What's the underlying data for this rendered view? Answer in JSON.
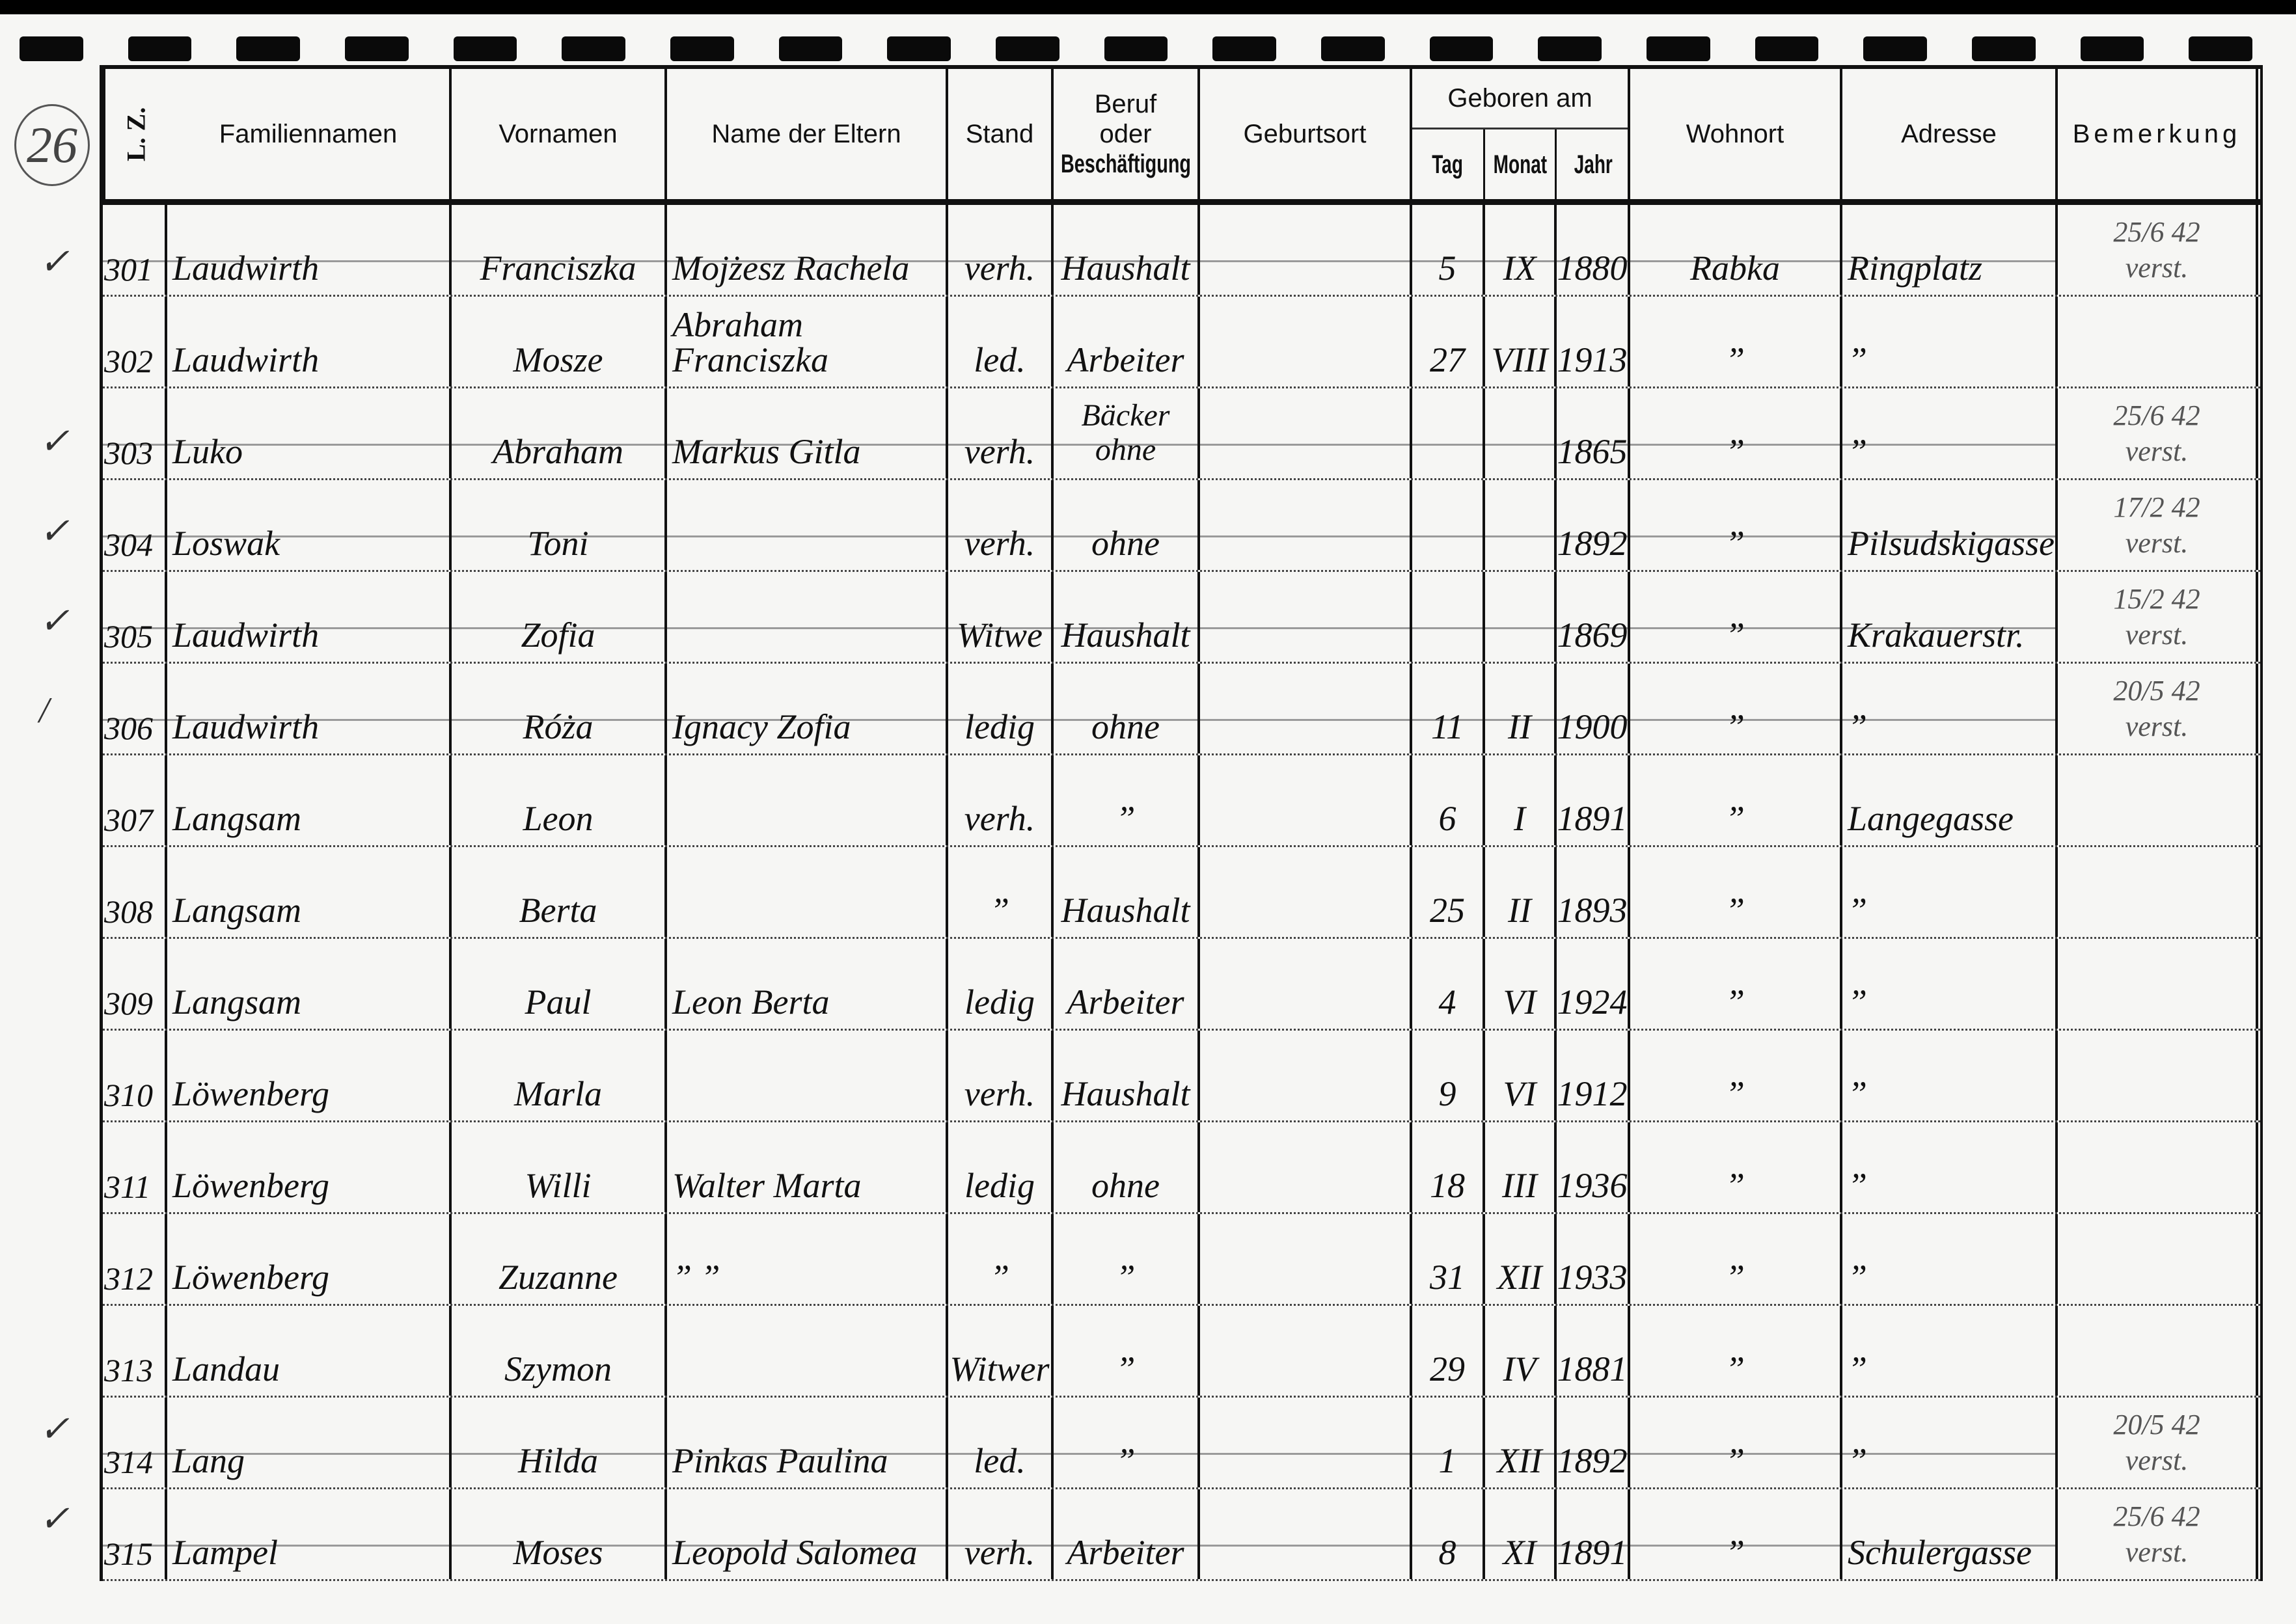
{
  "page_number": "26",
  "headers": {
    "lz": "L. Z.",
    "family": "Familiennamen",
    "first": "Vornamen",
    "parents": "Name der Eltern",
    "stand": "Stand",
    "beruf_1": "Beruf",
    "beruf_2": "oder",
    "beruf_3": "Beschäftigung",
    "geburtsort": "Geburtsort",
    "geboren": "Geboren am",
    "tag": "Tag",
    "monat": "Monat",
    "jahr": "Jahr",
    "wohnort": "Wohnort",
    "adresse": "Adresse",
    "bemerkung": "Bemerkung"
  },
  "rows": [
    {
      "lz": "301",
      "family": "Laudwirth",
      "first": "Franciszka",
      "parents": "Mojżesz Rachela",
      "stand": "verh.",
      "beruf": "Haushalt",
      "tag": "5",
      "monat": "IX",
      "jahr": "1880",
      "wohnort": "Rabka",
      "adresse": "Ringplatz",
      "rem1": "25/6 42",
      "rem2": "verst.",
      "check": "✓",
      "struck": true
    },
    {
      "lz": "302",
      "family": "Laudwirth",
      "first": "Mosze",
      "parents": "Abraham Franciszka",
      "stand": "led.",
      "beruf": "Arbeiter",
      "tag": "27",
      "monat": "VIII",
      "jahr": "1913",
      "wohnort": "”",
      "adresse": "”"
    },
    {
      "lz": "303",
      "family": "Luko",
      "first": "Abraham",
      "parents": "Markus Gitla",
      "stand": "verh.",
      "beruf": "Bäcker ohne",
      "jahr": "1865",
      "wohnort": "”",
      "adresse": "”",
      "rem1": "25/6 42",
      "rem2": "verst.",
      "check": "✓",
      "struck": true
    },
    {
      "lz": "304",
      "family": "Loswak",
      "first": "Toni",
      "stand": "verh.",
      "beruf": "ohne",
      "jahr": "1892",
      "wohnort": "”",
      "adresse": "Pilsudskigasse",
      "rem1": "17/2 42",
      "rem2": "verst.",
      "check": "✓",
      "struck": true
    },
    {
      "lz": "305",
      "family": "Laudwirth",
      "first": "Zofia",
      "stand": "Witwe",
      "beruf": "Haushalt",
      "jahr": "1869",
      "wohnort": "”",
      "adresse": "Krakauerstr.",
      "rem1": "15/2 42",
      "rem2": "verst.",
      "check": "✓",
      "struck": true
    },
    {
      "lz": "306",
      "family": "Laudwirth",
      "first": "Róża",
      "parents": "Ignacy Zofia",
      "stand": "ledig",
      "beruf": "ohne",
      "tag": "11",
      "monat": "II",
      "jahr": "1900",
      "wohnort": "”",
      "adresse": "”",
      "rem1": "20/5 42",
      "rem2": "verst.",
      "check": "/",
      "struck": true
    },
    {
      "lz": "307",
      "family": "Langsam",
      "first": "Leon",
      "stand": "verh.",
      "beruf": "”",
      "tag": "6",
      "monat": "I",
      "jahr": "1891",
      "wohnort": "”",
      "adresse": "Langegasse"
    },
    {
      "lz": "308",
      "family": "Langsam",
      "first": "Berta",
      "stand": "”",
      "beruf": "Haushalt",
      "tag": "25",
      "monat": "II",
      "jahr": "1893",
      "wohnort": "”",
      "adresse": "”"
    },
    {
      "lz": "309",
      "family": "Langsam",
      "first": "Paul",
      "parents": "Leon Berta",
      "stand": "ledig",
      "beruf": "Arbeiter",
      "tag": "4",
      "monat": "VI",
      "jahr": "1924",
      "wohnort": "”",
      "adresse": "”"
    },
    {
      "lz": "310",
      "family": "Löwenberg",
      "first": "Marla",
      "stand": "verh.",
      "beruf": "Haushalt",
      "tag": "9",
      "monat": "VI",
      "jahr": "1912",
      "wohnort": "”",
      "adresse": "”"
    },
    {
      "lz": "311",
      "family": "Löwenberg",
      "first": "Willi",
      "parents": "Walter Marta",
      "stand": "ledig",
      "beruf": "ohne",
      "tag": "18",
      "monat": "III",
      "jahr": "1936",
      "wohnort": "”",
      "adresse": "”"
    },
    {
      "lz": "312",
      "family": "Löwenberg",
      "first": "Zuzanne",
      "parents": "”        ”",
      "stand": "”",
      "beruf": "”",
      "tag": "31",
      "monat": "XII",
      "jahr": "1933",
      "wohnort": "”",
      "adresse": "”"
    },
    {
      "lz": "313",
      "family": "Landau",
      "first": "Szymon",
      "stand": "Witwer",
      "beruf": "”",
      "tag": "29",
      "monat": "IV",
      "jahr": "1881",
      "wohnort": "”",
      "adresse": "”"
    },
    {
      "lz": "314",
      "family": "Lang",
      "first": "Hilda",
      "parents": "Pinkas Paulina",
      "stand": "led.",
      "beruf": "”",
      "tag": "1",
      "monat": "XII",
      "jahr": "1892",
      "wohnort": "”",
      "adresse": "”",
      "rem1": "20/5 42",
      "rem2": "verst.",
      "check": "✓",
      "struck": true
    },
    {
      "lz": "315",
      "family": "Lampel",
      "first": "Moses",
      "parents": "Leopold Salomea",
      "stand": "verh.",
      "beruf": "Arbeiter",
      "tag": "8",
      "monat": "XI",
      "jahr": "1891",
      "wohnort": "”",
      "adresse": "Schulergasse",
      "rem1": "25/6 42",
      "rem2": "verst.",
      "check": "✓",
      "struck": true
    }
  ]
}
